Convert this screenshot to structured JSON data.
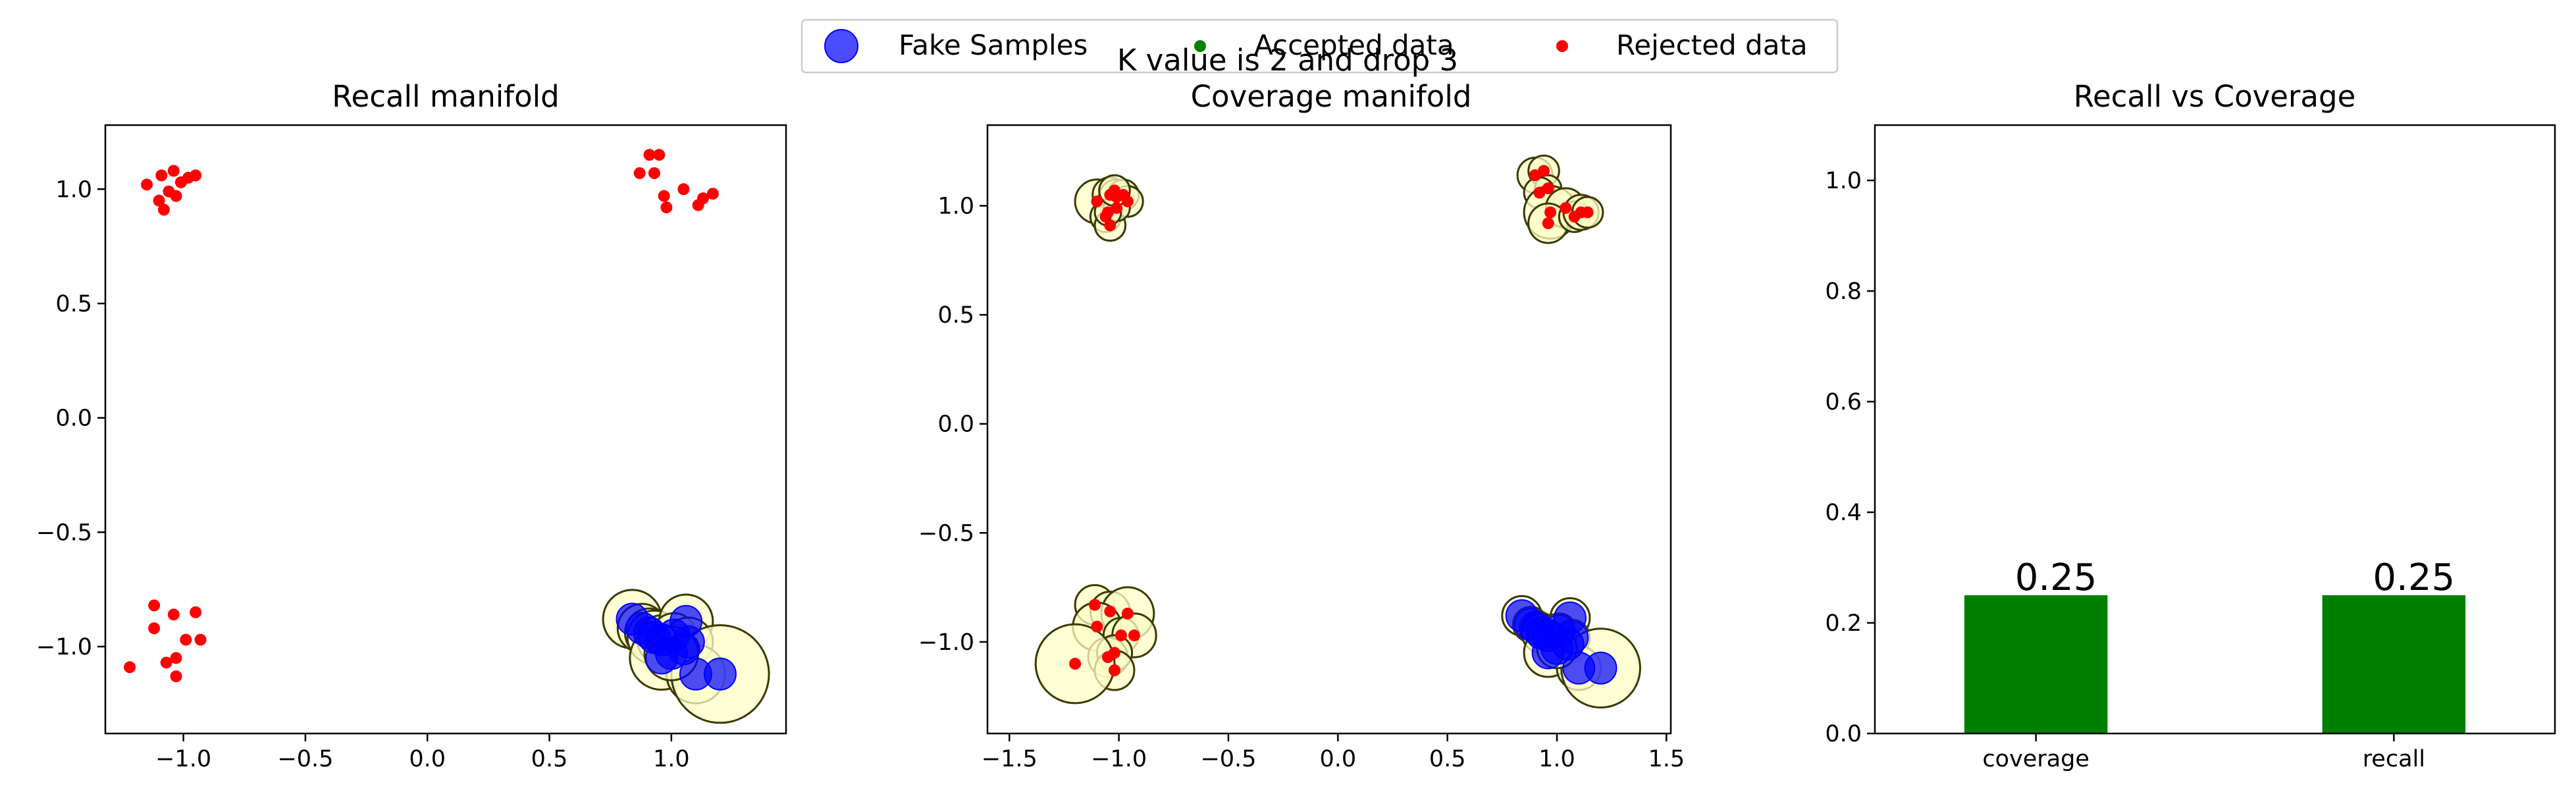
{
  "figure": {
    "suptitle": "K value is 2 and drop 3"
  },
  "legend": {
    "entries": [
      {
        "label": "Fake Samples",
        "marker": "large-circle",
        "color": "#0000ff"
      },
      {
        "label": "Accepted data",
        "marker": "small-dot",
        "color": "#008000"
      },
      {
        "label": "Rejected data",
        "marker": "small-dot",
        "color": "#ff0000"
      }
    ]
  },
  "colors": {
    "fake": "#0000ff",
    "accepted": "#008000",
    "rejected": "#ff0000",
    "manifold_fill": "#ffffc8",
    "manifold_edge": "#3a3a00",
    "bar": "#008000"
  },
  "chart_data": [
    {
      "type": "scatter",
      "title": "Recall manifold",
      "xlim": [
        -1.32,
        1.47
      ],
      "ylim": [
        -1.38,
        1.28
      ],
      "xticks": [
        -1.0,
        -0.5,
        0.0,
        0.5,
        1.0
      ],
      "xtick_labels": [
        "−1.0",
        "−0.5",
        "0.0",
        "0.5",
        "1.0"
      ],
      "yticks": [
        -1.0,
        -0.5,
        0.0,
        0.5,
        1.0
      ],
      "ytick_labels": [
        "−1.0",
        "−0.5",
        "0.0",
        "0.5",
        "1.0"
      ],
      "series": [
        {
          "name": "Rejected data",
          "kind": "rejected",
          "points": [
            [
              -1.15,
              1.02
            ],
            [
              -1.09,
              1.06
            ],
            [
              -1.04,
              1.08
            ],
            [
              -1.01,
              1.03
            ],
            [
              -0.98,
              1.05
            ],
            [
              -0.95,
              1.06
            ],
            [
              -1.1,
              0.95
            ],
            [
              -1.08,
              0.91
            ],
            [
              -1.03,
              0.97
            ],
            [
              -1.06,
              0.99
            ],
            [
              0.87,
              1.07
            ],
            [
              0.91,
              1.15
            ],
            [
              0.95,
              1.15
            ],
            [
              0.93,
              1.07
            ],
            [
              0.97,
              0.97
            ],
            [
              1.05,
              1.0
            ],
            [
              0.98,
              0.92
            ],
            [
              1.13,
              0.96
            ],
            [
              1.11,
              0.93
            ],
            [
              1.17,
              0.98
            ],
            [
              -1.12,
              -0.82
            ],
            [
              -1.04,
              -0.86
            ],
            [
              -0.95,
              -0.85
            ],
            [
              -1.12,
              -0.92
            ],
            [
              -0.99,
              -0.97
            ],
            [
              -0.93,
              -0.97
            ],
            [
              -1.07,
              -1.07
            ],
            [
              -1.03,
              -1.05
            ],
            [
              -1.03,
              -1.13
            ],
            [
              -1.22,
              -1.09
            ]
          ]
        },
        {
          "name": "Fake Samples",
          "kind": "fake",
          "points": [
            [
              0.84,
              -0.88
            ],
            [
              0.88,
              -0.92
            ],
            [
              0.91,
              -0.94
            ],
            [
              0.93,
              -0.96
            ],
            [
              0.96,
              -0.97
            ],
            [
              1.06,
              -0.89
            ],
            [
              1.01,
              -0.95
            ],
            [
              1.05,
              -1.01
            ],
            [
              1.07,
              -0.98
            ],
            [
              0.96,
              -1.05
            ],
            [
              1.1,
              -1.12
            ],
            [
              1.2,
              -1.12
            ],
            [
              1.0,
              -1.03
            ]
          ],
          "manifold_radii": [
            0.12,
            0.1,
            0.1,
            0.11,
            0.1,
            0.11,
            0.09,
            0.1,
            0.1,
            0.13,
            0.12,
            0.2,
            0.11
          ]
        }
      ]
    },
    {
      "type": "scatter",
      "title": "Coverage manifold",
      "xlim": [
        -1.6,
        1.52
      ],
      "ylim": [
        -1.42,
        1.37
      ],
      "xticks": [
        -1.5,
        -1.0,
        -0.5,
        0.0,
        0.5,
        1.0,
        1.5
      ],
      "xtick_labels": [
        "−1.5",
        "−1.0",
        "−0.5",
        "0.0",
        "0.5",
        "1.0",
        "1.5"
      ],
      "yticks": [
        -1.0,
        -0.5,
        0.0,
        0.5,
        1.0
      ],
      "ytick_labels": [
        "−1.0",
        "−0.5",
        "0.0",
        "0.5",
        "1.0"
      ],
      "series": [
        {
          "name": "Rejected data",
          "kind": "rejected",
          "points": [
            [
              -1.1,
              1.02
            ],
            [
              -1.04,
              1.05
            ],
            [
              -1.01,
              1.04
            ],
            [
              -0.98,
              1.05
            ],
            [
              -0.96,
              1.02
            ],
            [
              -1.06,
              0.95
            ],
            [
              -1.04,
              0.91
            ],
            [
              -1.01,
              0.99
            ],
            [
              -1.05,
              0.97
            ],
            [
              -1.02,
              1.07
            ],
            [
              0.9,
              1.14
            ],
            [
              0.94,
              1.16
            ],
            [
              0.96,
              1.08
            ],
            [
              0.92,
              1.06
            ],
            [
              0.97,
              0.97
            ],
            [
              1.04,
              0.99
            ],
            [
              0.96,
              0.92
            ],
            [
              1.08,
              0.95
            ],
            [
              1.11,
              0.97
            ],
            [
              1.14,
              0.97
            ],
            [
              -1.11,
              -0.83
            ],
            [
              -1.04,
              -0.86
            ],
            [
              -0.96,
              -0.87
            ],
            [
              -1.1,
              -0.93
            ],
            [
              -0.99,
              -0.97
            ],
            [
              -0.93,
              -0.97
            ],
            [
              -1.05,
              -1.07
            ],
            [
              -1.02,
              -1.05
            ],
            [
              -1.02,
              -1.13
            ],
            [
              -1.2,
              -1.1
            ]
          ],
          "manifold_radii": [
            0.1,
            0.08,
            0.08,
            0.07,
            0.07,
            0.07,
            0.07,
            0.06,
            0.06,
            0.07,
            0.08,
            0.07,
            0.06,
            0.07,
            0.12,
            0.09,
            0.09,
            0.07,
            0.08,
            0.07,
            0.09,
            0.09,
            0.12,
            0.11,
            0.08,
            0.1,
            0.09,
            0.08,
            0.09,
            0.18
          ]
        },
        {
          "name": "Fake Samples",
          "kind": "fake",
          "points": [
            [
              0.84,
              -0.88
            ],
            [
              0.88,
              -0.92
            ],
            [
              0.91,
              -0.94
            ],
            [
              0.93,
              -0.96
            ],
            [
              0.96,
              -0.97
            ],
            [
              1.06,
              -0.89
            ],
            [
              1.01,
              -0.95
            ],
            [
              1.05,
              -1.01
            ],
            [
              1.07,
              -0.98
            ],
            [
              0.96,
              -1.05
            ],
            [
              1.1,
              -1.12
            ],
            [
              1.2,
              -1.12
            ],
            [
              1.0,
              -1.03
            ]
          ],
          "manifold_radii": [
            0.09,
            0.08,
            0.08,
            0.09,
            0.09,
            0.09,
            0.08,
            0.09,
            0.08,
            0.11,
            0.1,
            0.18,
            0.09
          ]
        }
      ]
    },
    {
      "type": "bar",
      "title": "Recall vs Coverage",
      "categories": [
        "coverage",
        "recall"
      ],
      "values": [
        0.25,
        0.25
      ],
      "value_labels": [
        "0.25",
        "0.25"
      ],
      "xlim": [
        -0.45,
        1.45
      ],
      "ylim": [
        0.0,
        1.1
      ],
      "bar_width": 0.4,
      "yticks": [
        0.0,
        0.2,
        0.4,
        0.6,
        0.8,
        1.0
      ],
      "ytick_labels": [
        "0.0",
        "0.2",
        "0.4",
        "0.6",
        "0.8",
        "1.0"
      ]
    }
  ]
}
